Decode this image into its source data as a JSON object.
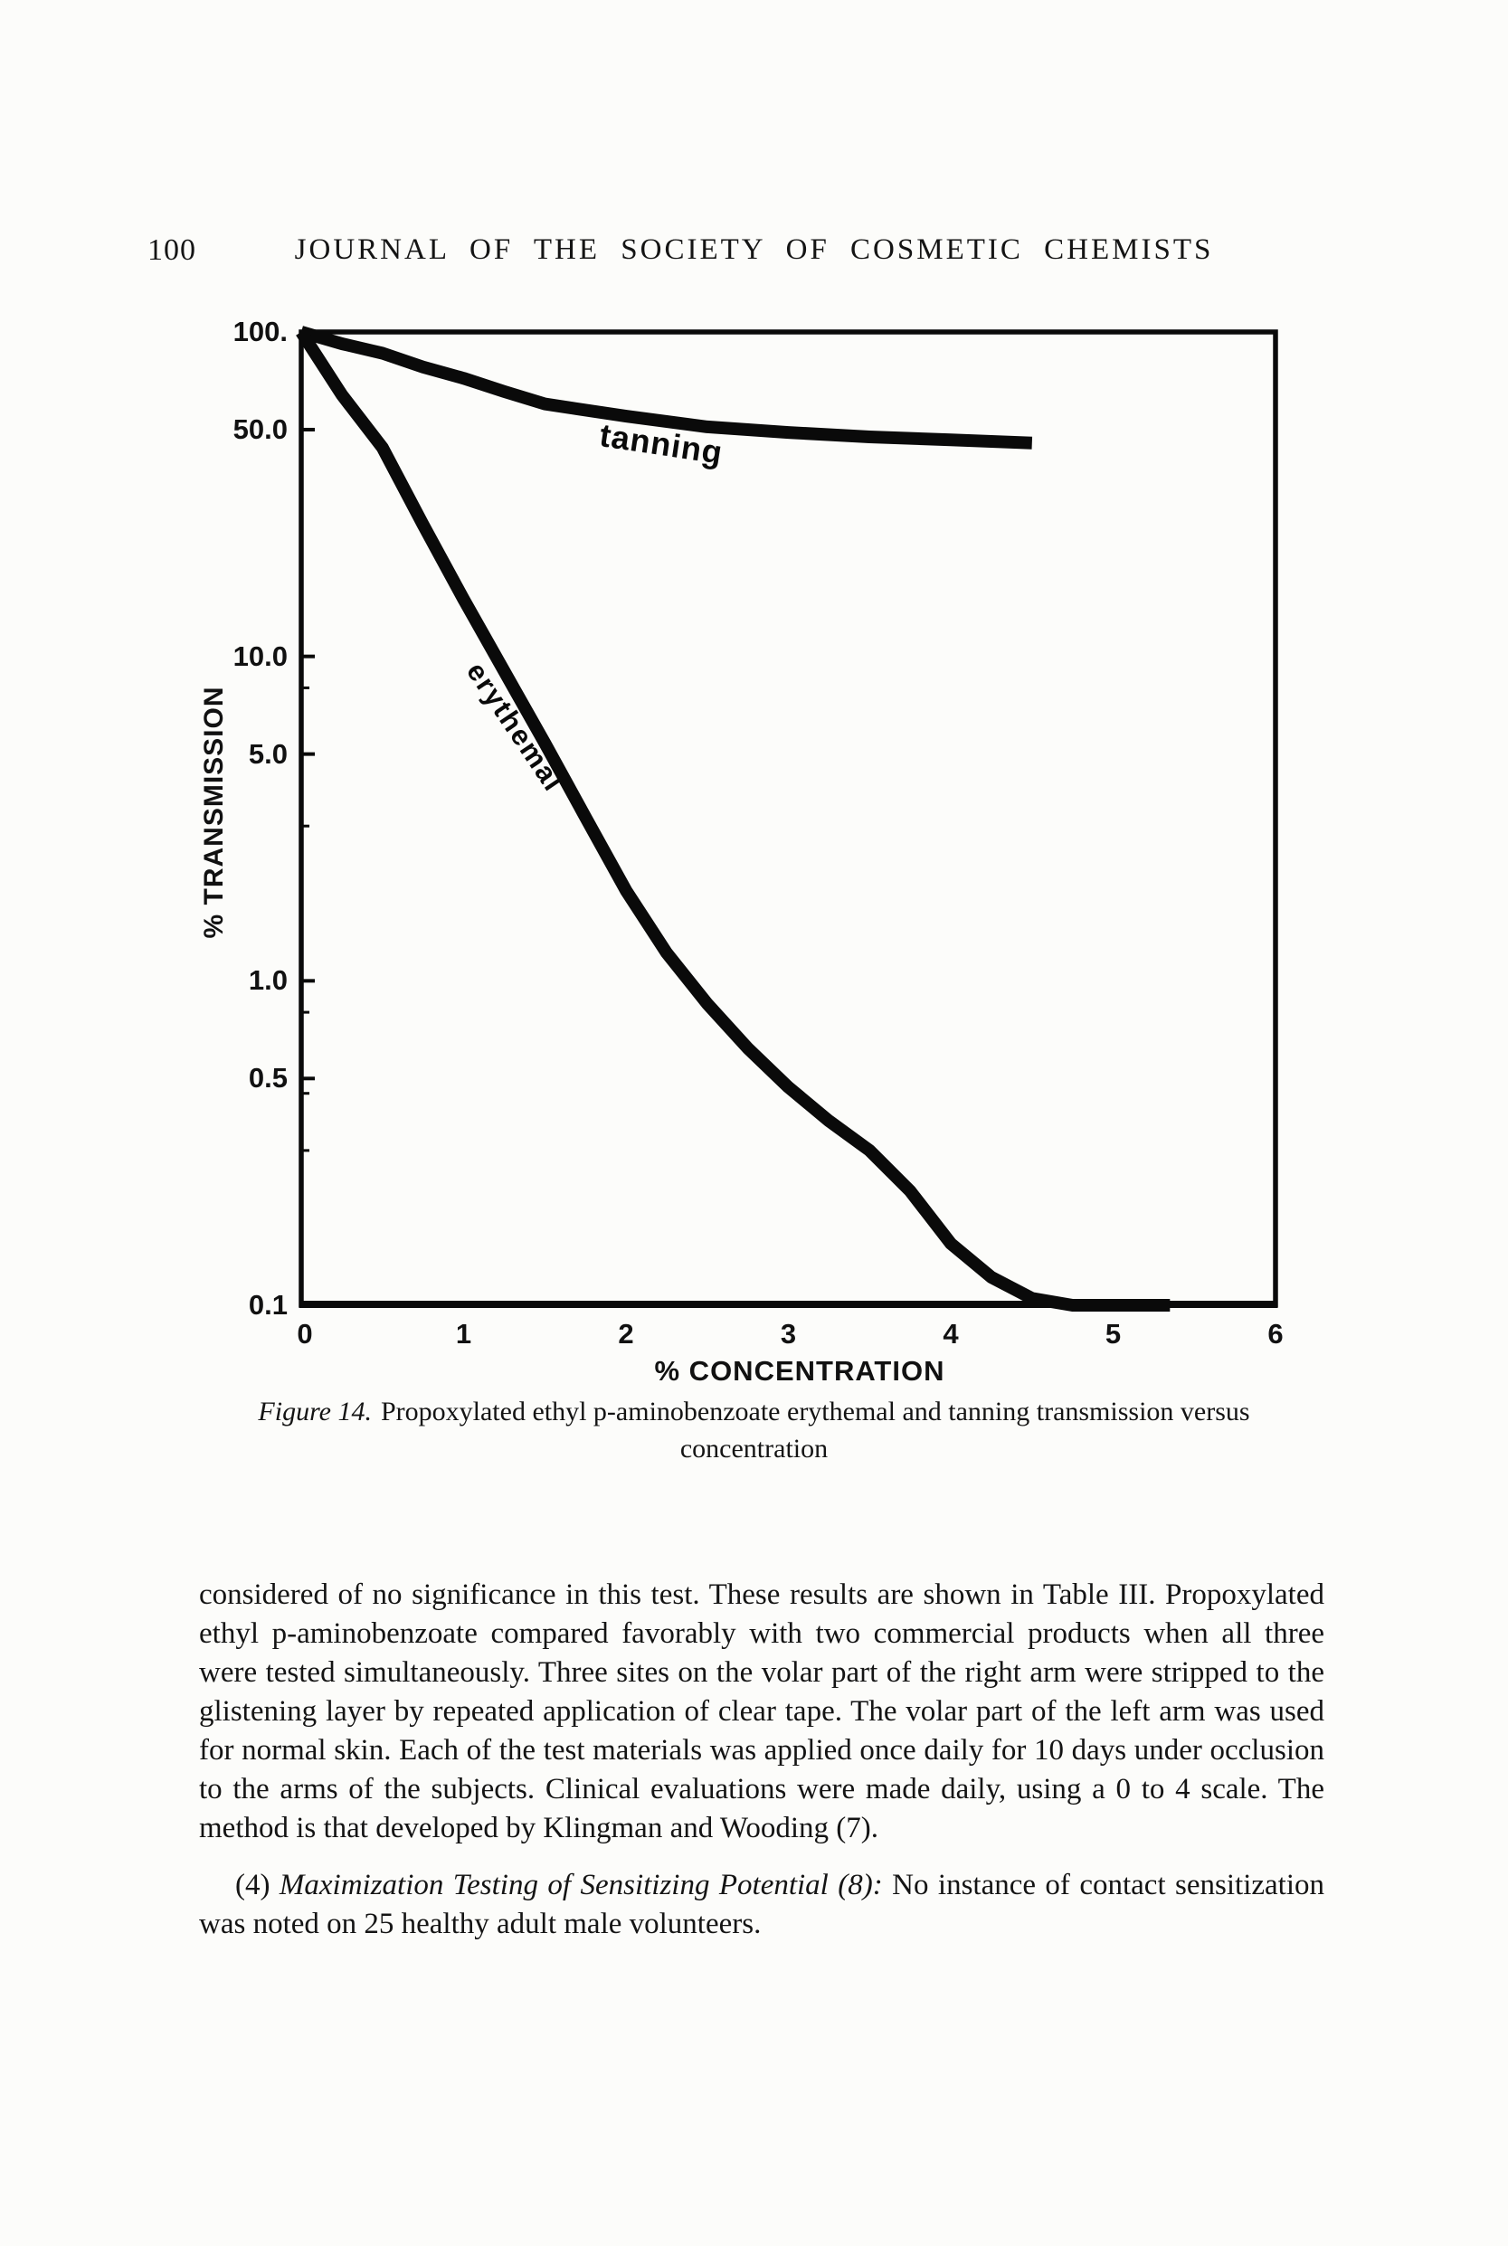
{
  "page": {
    "number": "100",
    "journal_header": "JOURNAL OF THE SOCIETY OF COSMETIC CHEMISTS"
  },
  "chart_data": {
    "type": "line",
    "title": "",
    "xlabel": "% CONCENTRATION",
    "ylabel": "% TRANSMISSION",
    "y_scale": "log",
    "xlim": [
      0,
      6
    ],
    "ylim": [
      0.1,
      100
    ],
    "grid": false,
    "legend": "inline-curve-labels",
    "x_ticks": {
      "values": [
        0,
        1,
        2,
        3,
        4,
        5,
        6
      ],
      "labels": [
        "0",
        "1",
        "2",
        "3",
        "4",
        "5",
        "6"
      ]
    },
    "y_ticks": {
      "values": [
        100,
        50,
        10,
        5,
        1,
        0.5,
        0.1
      ],
      "labels": [
        "100.",
        "50.0",
        "10.0",
        "5.0",
        "1.0",
        "0.5",
        "0.1"
      ]
    },
    "y_minor_ticks": [
      8,
      3,
      0.8,
      0.45,
      0.3
    ],
    "series": [
      {
        "name": "tanning",
        "x": [
          0,
          0.25,
          0.5,
          0.75,
          1.0,
          1.25,
          1.5,
          2.0,
          2.5,
          3.0,
          3.5,
          4.0,
          4.5
        ],
        "y": [
          100,
          92,
          86,
          78,
          72,
          65.5,
          60,
          55,
          51,
          49,
          47.5,
          46.5,
          45.5
        ]
      },
      {
        "name": "erythemal",
        "x": [
          0,
          0.25,
          0.5,
          0.75,
          1.0,
          1.25,
          1.5,
          1.75,
          2.0,
          2.25,
          2.5,
          2.75,
          3.0,
          3.25,
          3.5,
          3.75,
          4.0,
          4.25,
          4.5,
          4.75,
          5.0,
          5.35
        ],
        "y": [
          100,
          64,
          44,
          25.5,
          15,
          9.0,
          5.4,
          3.2,
          1.9,
          1.22,
          0.85,
          0.62,
          0.47,
          0.37,
          0.3,
          0.225,
          0.155,
          0.122,
          0.105,
          0.1,
          0.1,
          0.1
        ]
      }
    ]
  },
  "caption": {
    "figure_label": "Figure 14.",
    "line1_rest": "Propoxylated ethyl p-aminobenzoate erythemal and tanning transmission versus",
    "line2": "concentration"
  },
  "body": {
    "paragraph1": "considered of no significance in this test. These results are shown in Table III. Propoxylated ethyl p-aminobenzoate compared favorably with two commercial products when all three were tested simultaneously. Three sites on the volar part of the right arm were stripped to the glistening layer by repeated application of clear tape. The volar part of the left arm was used for normal skin. Each of the test materials was applied once daily for 10 days under occlusion to the arms of the subjects. Clinical evaluations were made daily, using a 0 to 4 scale. The method is that developed by Klingman and Wooding (7).",
    "paragraph2_number": "(4) ",
    "paragraph2_italic": "Maximization Testing of Sensitizing Potential (8):",
    "paragraph2_rest": " No instance of contact sensitization was noted on 25 healthy adult male volunteers."
  },
  "colors": {
    "ink": "#0a0a0a",
    "paper": "#fcfcfa"
  }
}
